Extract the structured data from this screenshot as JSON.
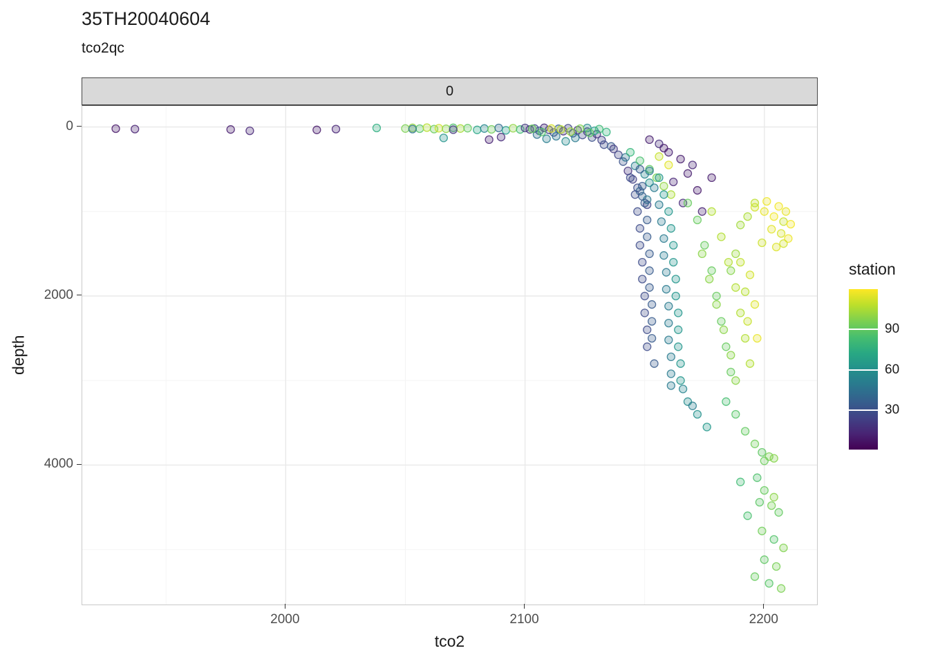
{
  "title": "35TH20040604",
  "subtitle": "tco2qc",
  "facet_label": "0",
  "chart_data": {
    "type": "scatter",
    "title": "35TH20040604",
    "subtitle": "tco2qc",
    "facet": "0",
    "xlabel": "tco2",
    "ylabel": "depth",
    "xlim": [
      1915,
      2222
    ],
    "ylim": [
      -250,
      5650
    ],
    "y_reversed_axis": "depth increases downward",
    "x_ticks": [
      2000,
      2100,
      2200
    ],
    "x_minor": [
      1950,
      2050,
      2150
    ],
    "y_ticks": [
      0,
      2000,
      4000
    ],
    "y_minor": [
      1000,
      3000,
      5000
    ],
    "grid": true,
    "legend": {
      "title": "station",
      "position": "right",
      "ticks": [
        90,
        60,
        30
      ],
      "domain": [
        1,
        120
      ],
      "colormap": "viridis"
    },
    "point_columns": [
      "tco2",
      "depth",
      "station"
    ],
    "points": [
      [
        1929,
        20,
        8
      ],
      [
        1937,
        25,
        12
      ],
      [
        1977,
        30,
        10
      ],
      [
        1985,
        45,
        14
      ],
      [
        2013,
        35,
        9
      ],
      [
        2021,
        25,
        13
      ],
      [
        2038,
        12,
        75
      ],
      [
        2050,
        18,
        96
      ],
      [
        2053,
        10,
        101
      ],
      [
        2056,
        20,
        88
      ],
      [
        2059,
        8,
        107
      ],
      [
        2062,
        25,
        93
      ],
      [
        2064,
        15,
        111
      ],
      [
        2067,
        22,
        99
      ],
      [
        2070,
        10,
        86
      ],
      [
        2073,
        18,
        104
      ],
      [
        2076,
        14,
        91
      ],
      [
        2066,
        130,
        62
      ],
      [
        2053,
        25,
        47
      ],
      [
        2070,
        32,
        20
      ],
      [
        2080,
        35,
        71
      ],
      [
        2083,
        18,
        56
      ],
      [
        2086,
        28,
        94
      ],
      [
        2089,
        12,
        42
      ],
      [
        2092,
        40,
        66
      ],
      [
        2095,
        15,
        100
      ],
      [
        2098,
        30,
        83
      ],
      [
        2085,
        150,
        12
      ],
      [
        2090,
        120,
        15
      ],
      [
        2100,
        12,
        21
      ],
      [
        2102,
        30,
        18
      ],
      [
        2104,
        18,
        26
      ],
      [
        2106,
        45,
        31
      ],
      [
        2108,
        10,
        15
      ],
      [
        2110,
        35,
        23
      ],
      [
        2112,
        65,
        28
      ],
      [
        2114,
        22,
        36
      ],
      [
        2116,
        50,
        17
      ],
      [
        2118,
        15,
        25
      ],
      [
        2120,
        75,
        33
      ],
      [
        2122,
        38,
        19
      ],
      [
        2124,
        95,
        27
      ],
      [
        2126,
        55,
        22
      ],
      [
        2128,
        125,
        30
      ],
      [
        2130,
        85,
        16
      ],
      [
        2132,
        155,
        24
      ],
      [
        2126,
        12,
        59
      ],
      [
        2129,
        45,
        65
      ],
      [
        2133,
        210,
        28
      ],
      [
        2105,
        90,
        45
      ],
      [
        2109,
        140,
        52
      ],
      [
        2113,
        110,
        48
      ],
      [
        2117,
        170,
        57
      ],
      [
        2121,
        130,
        50
      ],
      [
        2136,
        230,
        34
      ],
      [
        2134,
        60,
        78
      ],
      [
        2131,
        25,
        82
      ],
      [
        2127,
        70,
        90
      ],
      [
        2123,
        20,
        97
      ],
      [
        2119,
        55,
        103
      ],
      [
        2115,
        30,
        108
      ],
      [
        2111,
        18,
        113
      ],
      [
        2107,
        60,
        87
      ],
      [
        2103,
        22,
        92
      ],
      [
        2137,
        260,
        21
      ],
      [
        2139,
        330,
        26
      ],
      [
        2141,
        410,
        31
      ],
      [
        2143,
        520,
        18
      ],
      [
        2145,
        620,
        23
      ],
      [
        2147,
        720,
        29
      ],
      [
        2149,
        820,
        36
      ],
      [
        2151,
        920,
        25
      ],
      [
        2142,
        360,
        46
      ],
      [
        2146,
        460,
        51
      ],
      [
        2150,
        560,
        56
      ],
      [
        2152,
        660,
        61
      ],
      [
        2148,
        760,
        41
      ],
      [
        2151,
        860,
        49
      ],
      [
        2144,
        300,
        80
      ],
      [
        2148,
        400,
        85
      ],
      [
        2152,
        500,
        90
      ],
      [
        2155,
        600,
        95
      ],
      [
        2158,
        700,
        100
      ],
      [
        2161,
        800,
        105
      ],
      [
        2156,
        350,
        110
      ],
      [
        2160,
        450,
        115
      ],
      [
        2148,
        500,
        35
      ],
      [
        2149,
        700,
        35
      ],
      [
        2150,
        900,
        35
      ],
      [
        2151,
        1100,
        35
      ],
      [
        2151,
        1300,
        35
      ],
      [
        2152,
        1500,
        35
      ],
      [
        2152,
        1700,
        35
      ],
      [
        2152,
        1900,
        35
      ],
      [
        2153,
        2100,
        35
      ],
      [
        2153,
        2300,
        35
      ],
      [
        2153,
        2500,
        35
      ],
      [
        2154,
        2800,
        35
      ],
      [
        2152,
        520,
        50
      ],
      [
        2154,
        720,
        50
      ],
      [
        2156,
        920,
        50
      ],
      [
        2157,
        1120,
        50
      ],
      [
        2158,
        1320,
        50
      ],
      [
        2158,
        1520,
        50
      ],
      [
        2159,
        1720,
        50
      ],
      [
        2159,
        1920,
        50
      ],
      [
        2160,
        2120,
        50
      ],
      [
        2160,
        2320,
        50
      ],
      [
        2160,
        2520,
        50
      ],
      [
        2161,
        2720,
        50
      ],
      [
        2161,
        2920,
        50
      ],
      [
        2161,
        3060,
        50
      ],
      [
        2156,
        600,
        63
      ],
      [
        2158,
        800,
        63
      ],
      [
        2160,
        1000,
        63
      ],
      [
        2161,
        1200,
        63
      ],
      [
        2162,
        1400,
        63
      ],
      [
        2162,
        1600,
        63
      ],
      [
        2163,
        1800,
        63
      ],
      [
        2163,
        2000,
        63
      ],
      [
        2164,
        2200,
        63
      ],
      [
        2164,
        2400,
        63
      ],
      [
        2164,
        2600,
        63
      ],
      [
        2165,
        2800,
        63
      ],
      [
        2165,
        3000,
        63
      ],
      [
        2144,
        600,
        28
      ],
      [
        2146,
        800,
        28
      ],
      [
        2147,
        1000,
        28
      ],
      [
        2148,
        1200,
        28
      ],
      [
        2148,
        1400,
        28
      ],
      [
        2149,
        1600,
        28
      ],
      [
        2149,
        1800,
        28
      ],
      [
        2150,
        2000,
        28
      ],
      [
        2150,
        2200,
        28
      ],
      [
        2151,
        2400,
        28
      ],
      [
        2151,
        2600,
        28
      ],
      [
        2160,
        300,
        12
      ],
      [
        2165,
        380,
        10
      ],
      [
        2170,
        450,
        14
      ],
      [
        2158,
        250,
        8
      ],
      [
        2168,
        550,
        11
      ],
      [
        2162,
        650,
        13
      ],
      [
        2172,
        750,
        9
      ],
      [
        2166,
        900,
        15
      ],
      [
        2174,
        1000,
        12
      ],
      [
        2178,
        600,
        10
      ],
      [
        2156,
        200,
        16
      ],
      [
        2152,
        150,
        11
      ],
      [
        2168,
        900,
        92
      ],
      [
        2172,
        1100,
        92
      ],
      [
        2175,
        1400,
        92
      ],
      [
        2178,
        1700,
        92
      ],
      [
        2180,
        2000,
        92
      ],
      [
        2182,
        2300,
        92
      ],
      [
        2184,
        2600,
        92
      ],
      [
        2186,
        2900,
        92
      ],
      [
        2178,
        1000,
        106
      ],
      [
        2182,
        1300,
        106
      ],
      [
        2185,
        1600,
        106
      ],
      [
        2188,
        1900,
        106
      ],
      [
        2190,
        2200,
        106
      ],
      [
        2192,
        2500,
        106
      ],
      [
        2194,
        2800,
        106
      ],
      [
        2174,
        1500,
        99
      ],
      [
        2177,
        1800,
        99
      ],
      [
        2180,
        2100,
        99
      ],
      [
        2183,
        2400,
        99
      ],
      [
        2186,
        2700,
        99
      ],
      [
        2188,
        3000,
        99
      ],
      [
        2196,
        950,
        112
      ],
      [
        2200,
        1000,
        116
      ],
      [
        2204,
        1060,
        118
      ],
      [
        2208,
        1120,
        110
      ],
      [
        2203,
        1210,
        115
      ],
      [
        2207,
        1260,
        113
      ],
      [
        2210,
        1320,
        117
      ],
      [
        2199,
        1370,
        111
      ],
      [
        2205,
        1420,
        114
      ],
      [
        2196,
        900,
        108
      ],
      [
        2193,
        1060,
        105
      ],
      [
        2190,
        1160,
        103
      ],
      [
        2201,
        880,
        117
      ],
      [
        2206,
        940,
        118
      ],
      [
        2209,
        1000,
        116
      ],
      [
        2211,
        1150,
        118
      ],
      [
        2208,
        1380,
        112
      ],
      [
        2190,
        1600,
        109
      ],
      [
        2194,
        1750,
        112
      ],
      [
        2192,
        1950,
        107
      ],
      [
        2196,
        2100,
        114
      ],
      [
        2193,
        2300,
        110
      ],
      [
        2197,
        2500,
        116
      ],
      [
        2188,
        1500,
        102
      ],
      [
        2186,
        1700,
        98
      ],
      [
        2166,
        3100,
        55
      ],
      [
        2168,
        3250,
        58
      ],
      [
        2172,
        3400,
        61
      ],
      [
        2176,
        3550,
        64
      ],
      [
        2170,
        3300,
        52
      ],
      [
        2184,
        3250,
        84
      ],
      [
        2188,
        3400,
        88
      ],
      [
        2192,
        3600,
        91
      ],
      [
        2196,
        3750,
        94
      ],
      [
        2199,
        3850,
        90
      ],
      [
        2202,
        3900,
        96
      ],
      [
        2200,
        3950,
        93
      ],
      [
        2204,
        3920,
        98
      ],
      [
        2197,
        4150,
        86
      ],
      [
        2200,
        4300,
        92
      ],
      [
        2204,
        4380,
        99
      ],
      [
        2198,
        4440,
        89
      ],
      [
        2203,
        4480,
        95
      ],
      [
        2206,
        4560,
        91
      ],
      [
        2199,
        4780,
        94
      ],
      [
        2204,
        4880,
        87
      ],
      [
        2208,
        4980,
        97
      ],
      [
        2200,
        5120,
        90
      ],
      [
        2205,
        5200,
        95
      ],
      [
        2196,
        5320,
        92
      ],
      [
        2202,
        5400,
        88
      ],
      [
        2207,
        5460,
        96
      ],
      [
        2193,
        4600,
        85
      ],
      [
        2190,
        4200,
        83
      ]
    ]
  },
  "colors": {
    "strip_bg": "#d9d9d9",
    "strip_border": "#454545",
    "panel_bg": "#ffffff",
    "panel_border": "#c9c9c9",
    "grid_major": "#e8e8e8",
    "grid_minor": "#f4f4f4",
    "tick": "#333333",
    "tick_label": "#4d4d4d",
    "viridis_low": "#440154",
    "viridis_high": "#fde725"
  }
}
